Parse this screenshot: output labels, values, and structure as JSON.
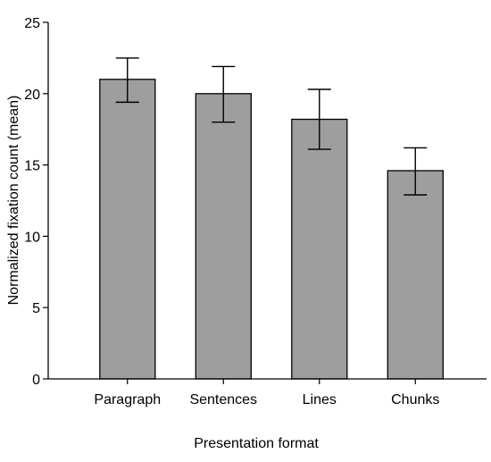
{
  "chart_data": {
    "type": "bar",
    "categories": [
      "Paragraph",
      "Sentences",
      "Lines",
      "Chunks"
    ],
    "values": [
      21.0,
      20.0,
      18.2,
      14.6
    ],
    "error_bars": {
      "upper": [
        22.5,
        21.9,
        20.3,
        16.2
      ],
      "lower": [
        19.4,
        18.0,
        16.1,
        12.9
      ]
    },
    "title": "",
    "xlabel": "Presentation format",
    "ylabel": "Normalized fixation count (mean)",
    "ylim": [
      0,
      25
    ],
    "yticks": [
      0,
      5,
      10,
      15,
      20,
      25
    ],
    "grid": false,
    "legend": "none",
    "colors": {
      "bar_fill": "#9e9e9e",
      "bar_stroke": "#000000",
      "axis": "#000000"
    }
  }
}
